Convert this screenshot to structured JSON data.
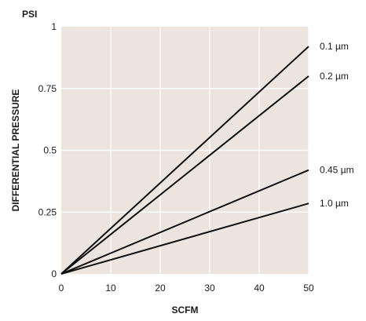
{
  "chart_data": {
    "type": "line",
    "title": "",
    "units_label": "PSI",
    "xlabel": "SCFM",
    "ylabel": "DIFFERENTIAL PRESSURE",
    "xlim": [
      0,
      50
    ],
    "ylim": [
      0,
      1
    ],
    "x_ticks": [
      "0",
      "10",
      "20",
      "30",
      "40",
      "50"
    ],
    "y_ticks": [
      "0",
      "0.25",
      "0.5",
      "0.75",
      "1"
    ],
    "x_tick_values": [
      0,
      10,
      20,
      30,
      40,
      50
    ],
    "y_tick_values": [
      0,
      0.25,
      0.5,
      0.75,
      1
    ],
    "grid": true,
    "background_color": "#ece5df",
    "grid_color": "#ffffff",
    "line_color": "#111111",
    "series": [
      {
        "name": "0.1 µm",
        "x": [
          0,
          50
        ],
        "y": [
          0,
          0.92
        ]
      },
      {
        "name": "0.2 µm",
        "x": [
          0,
          50
        ],
        "y": [
          0,
          0.8
        ]
      },
      {
        "name": "0.45 µm",
        "x": [
          0,
          50
        ],
        "y": [
          0,
          0.42
        ]
      },
      {
        "name": "1.0 µm",
        "x": [
          0,
          50
        ],
        "y": [
          0,
          0.285
        ]
      }
    ]
  }
}
